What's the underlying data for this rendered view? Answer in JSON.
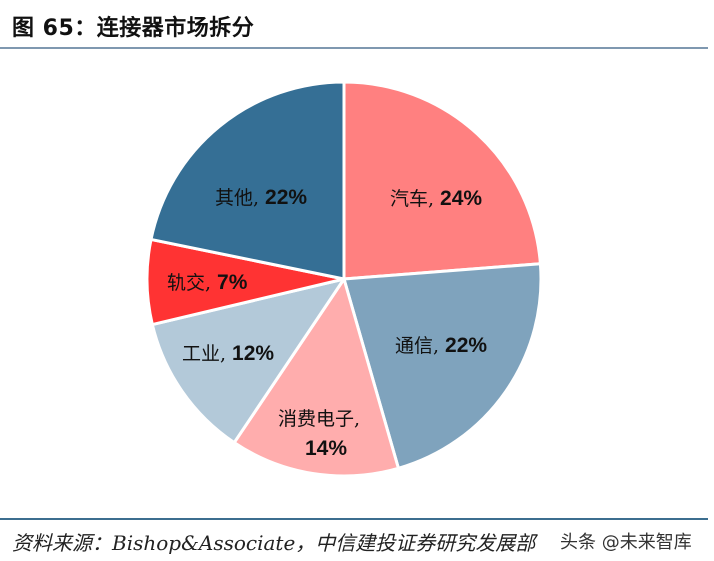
{
  "header": {
    "title": "图 65：连接器市场拆分"
  },
  "footer": {
    "source": "资料来源：Bishop&Associate，中信建投证券研究发展部",
    "watermark": "头条 @未来智库"
  },
  "chart_data": {
    "type": "pie",
    "title": "图 65：连接器市场拆分",
    "categories": [
      "汽车",
      "通信",
      "消费电子",
      "工业",
      "轨交",
      "其他"
    ],
    "values": [
      24,
      22,
      14,
      12,
      7,
      22
    ],
    "unit": "%",
    "colors": [
      "#ff8080",
      "#7fa3bd",
      "#ffadad",
      "#b3c9d9",
      "#ff3333",
      "#356f95"
    ],
    "labels": [
      "汽车, 24%",
      "通信, 22%",
      "消费电子, 14%",
      "工业, 12%",
      "轨交, 7%",
      "其他, 22%"
    ],
    "start_angle": "12 o'clock, clockwise",
    "legend": "none (data labels inside slices)"
  },
  "labels": {
    "auto_cn": "汽车,",
    "auto_pct": "24%",
    "telecom_cn": "通信,",
    "telecom_pct": "22%",
    "consumer_cn": "消费电子,",
    "consumer_pct": "14%",
    "industrial_cn": "工业,",
    "industrial_pct": "12%",
    "rail_cn": "轨交,",
    "rail_pct": "7%",
    "other_cn": "其他,",
    "other_pct": "22%"
  }
}
